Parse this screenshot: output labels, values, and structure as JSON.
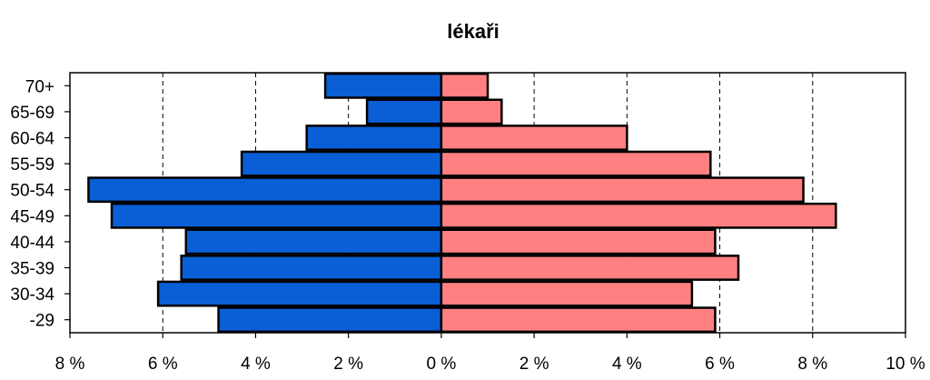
{
  "chart_data": {
    "type": "bar",
    "orientation": "horizontal-population-pyramid",
    "title": "lékaři",
    "xlabel": "",
    "ylabel": "",
    "categories": [
      "70+",
      "65-69",
      "60-64",
      "55-59",
      "50-54",
      "45-49",
      "40-44",
      "35-39",
      "30-34",
      "-29"
    ],
    "series": [
      {
        "values": [
          2.5,
          1.6,
          2.9,
          4.3,
          7.6,
          7.1,
          5.5,
          5.6,
          6.1,
          4.8
        ],
        "color": "#0a5fd6",
        "side": "left"
      },
      {
        "values": [
          1.0,
          1.3,
          4.0,
          5.8,
          7.8,
          8.5,
          5.9,
          6.4,
          5.4,
          5.9
        ],
        "color": "#ff8080",
        "side": "right"
      }
    ],
    "xlim": [
      -8,
      10
    ],
    "x_ticks": [
      -8,
      -6,
      -4,
      -2,
      0,
      2,
      4,
      6,
      8,
      10
    ],
    "x_tick_labels": [
      "8 %",
      "6 %",
      "4 %",
      "2 %",
      "0 %",
      "2 %",
      "4 %",
      "6 %",
      "8 %",
      "10 %"
    ],
    "grid": "vertical-dashed",
    "legend": "none"
  }
}
